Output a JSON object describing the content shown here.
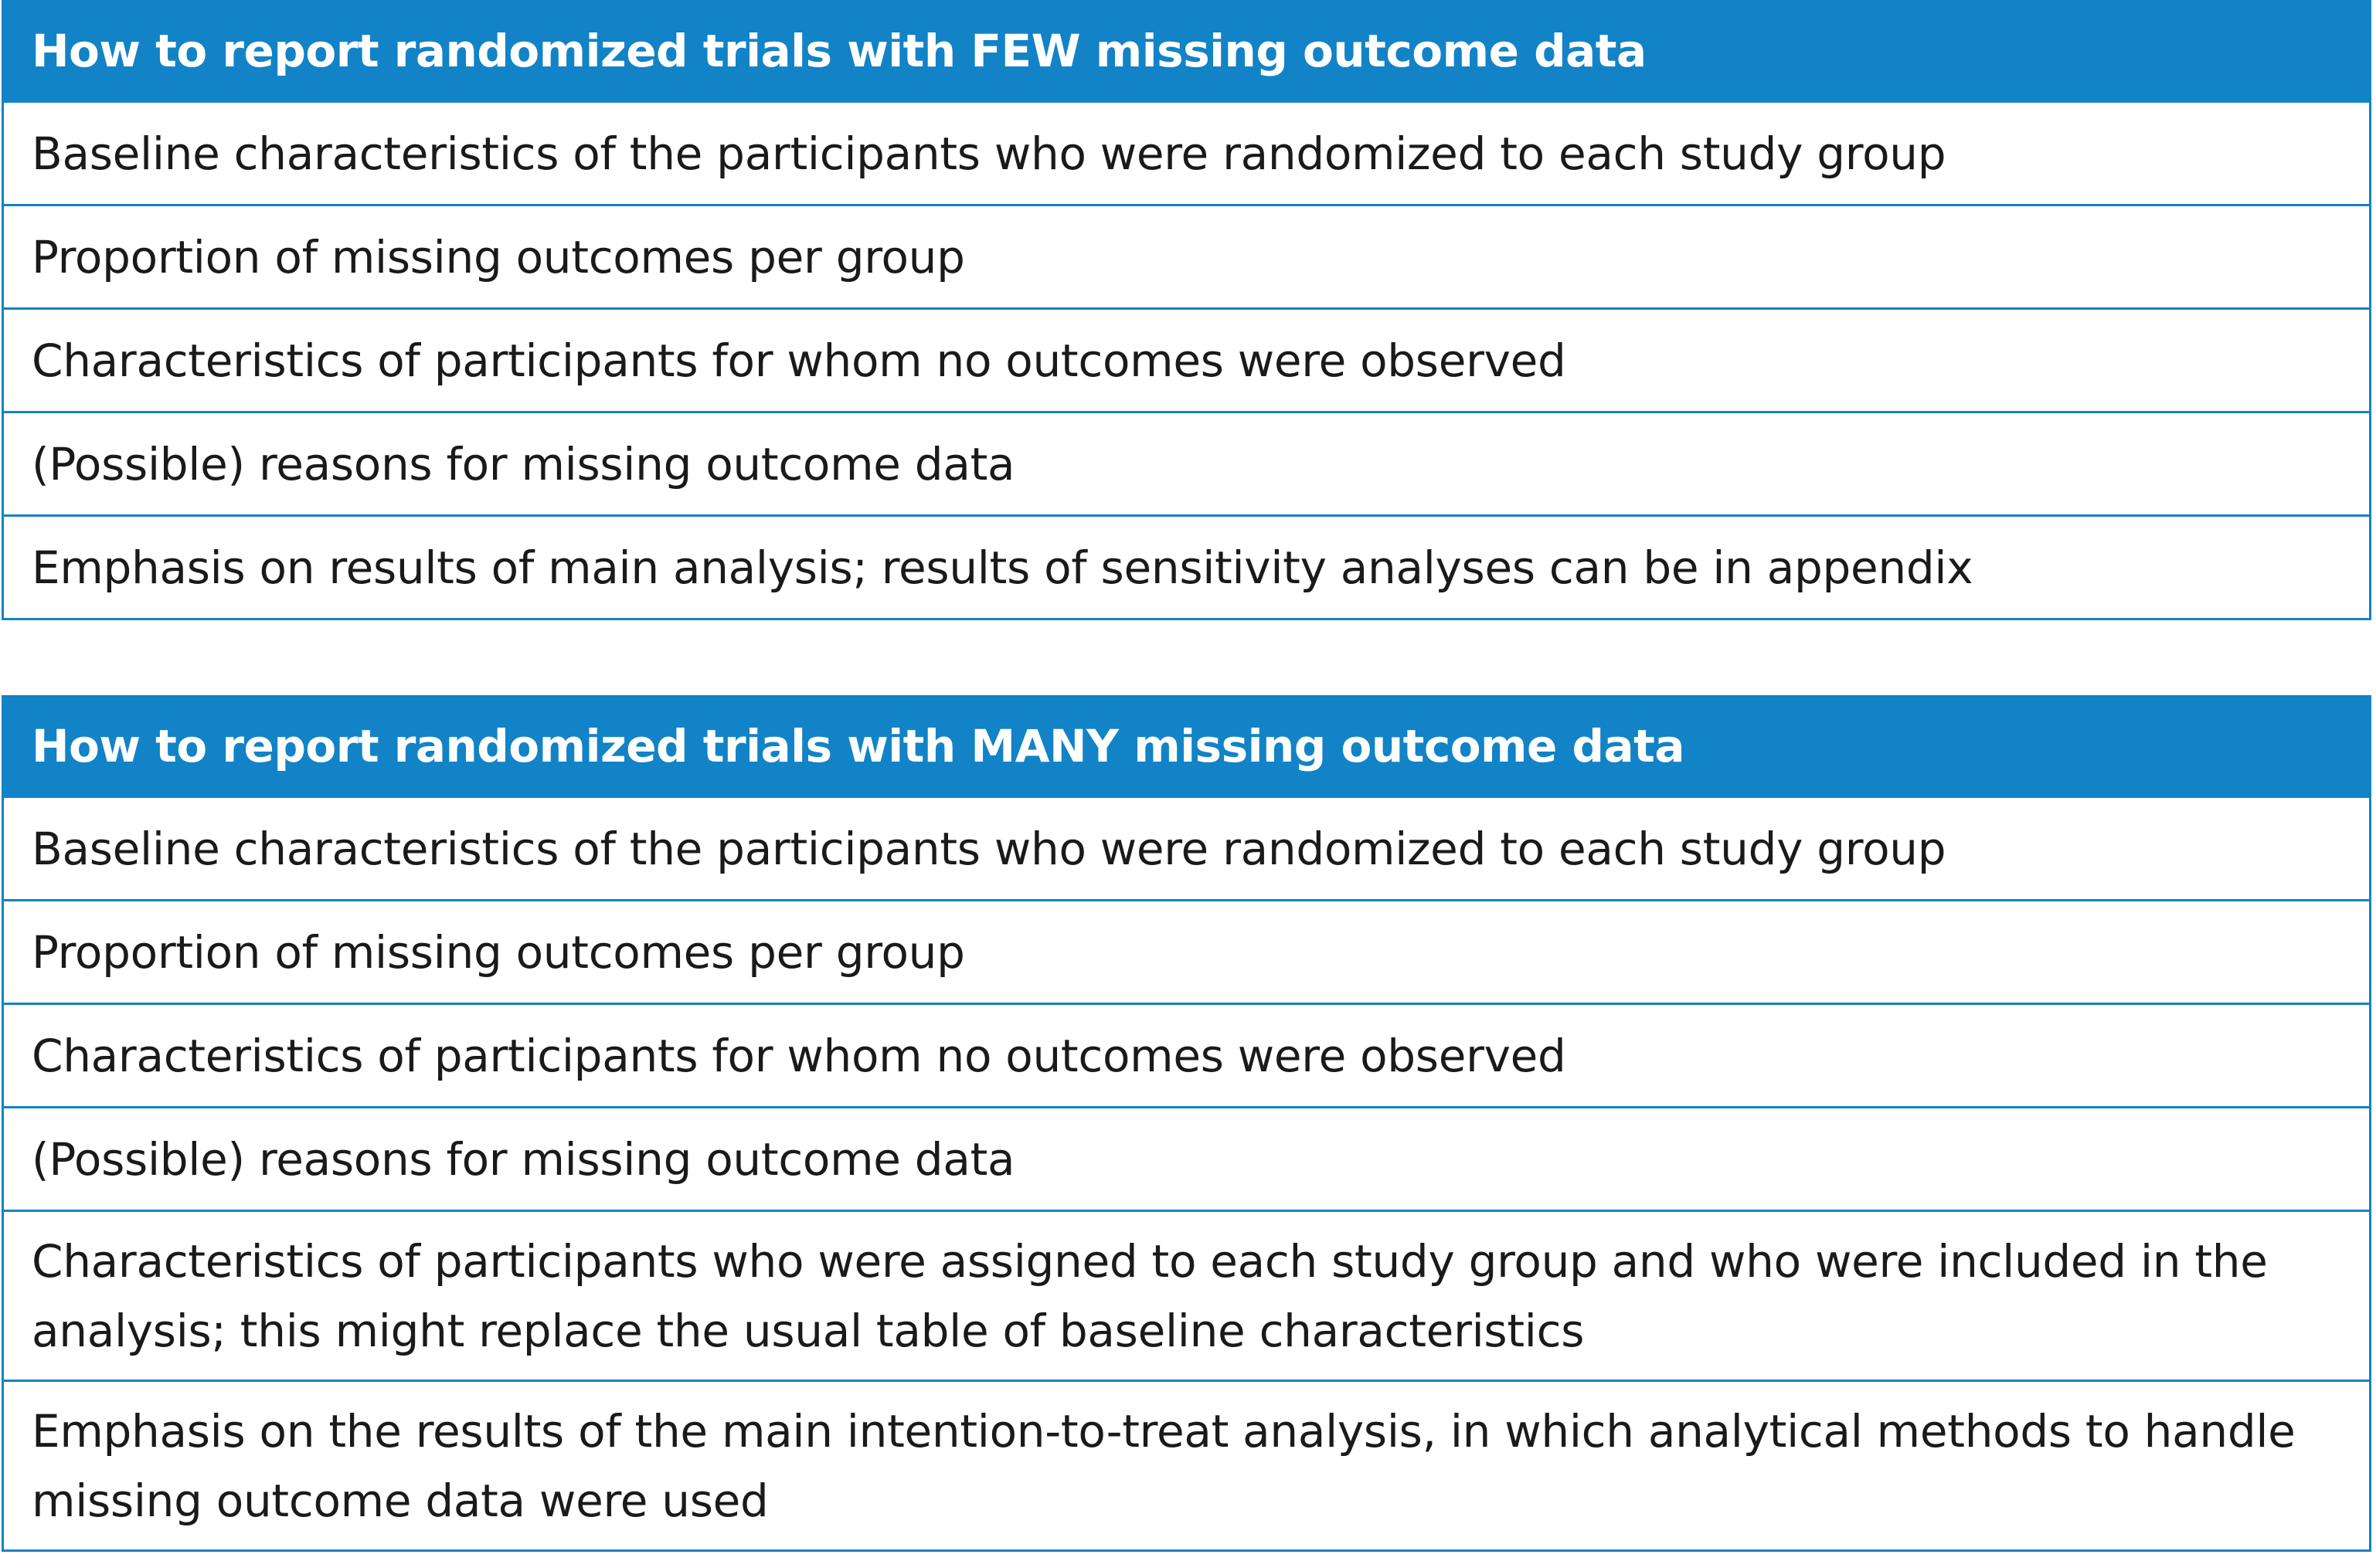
{
  "table_few": {
    "header": "How to report randomized trials with FEW missing outcome data",
    "rows": [
      "Baseline characteristics of the participants who were randomized to each study group",
      "Proportion of missing outcomes per group",
      "Characteristics of participants for whom no outcomes were observed",
      "(Possible) reasons for missing outcome data",
      "Emphasis on results of main analysis; results of sensitivity analyses can be in appendix"
    ]
  },
  "table_many": {
    "header": "How to report randomized trials with MANY missing outcome data",
    "rows": [
      "Baseline characteristics of the participants who were randomized to each study group",
      "Proportion of missing outcomes per group",
      "Characteristics of participants for whom no outcomes were observed",
      "(Possible) reasons for missing outcome data",
      "Characteristics of participants who were assigned to each study group and who were included in the analysis; this might replace the usual table of baseline characteristics",
      "Emphasis on the results of the main intention-to-treat analysis, in which analytical methods to handle missing outcome data were used"
    ]
  },
  "colors": {
    "header_background": "#1283c6",
    "header_text": "#ffffff",
    "border": "#1283c6",
    "body_text": "#1a1a1a"
  }
}
